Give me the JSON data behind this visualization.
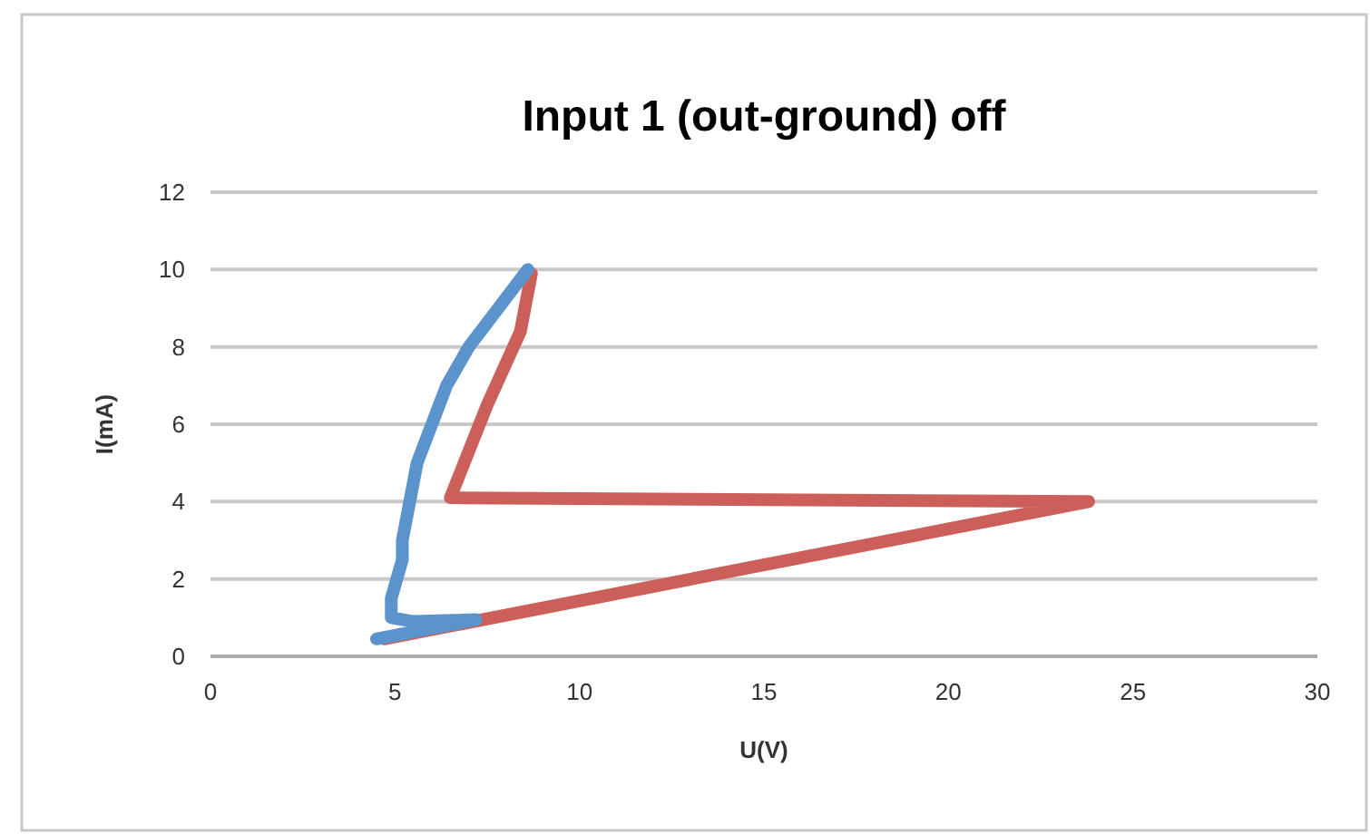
{
  "chart_data": {
    "type": "line",
    "title": "Input 1 (out-ground) off",
    "xlabel": "U(V)",
    "ylabel": "I(mA)",
    "xlim": [
      0,
      30
    ],
    "xticks": [
      0,
      5,
      10,
      15,
      20,
      25,
      30
    ],
    "ylim": [
      0,
      12
    ],
    "yticks": [
      0,
      2,
      4,
      6,
      8,
      10,
      12
    ],
    "grid": "y",
    "marker": "none",
    "line_style": "solid",
    "series": [
      {
        "color": "#cc5f5a",
        "x": [
          4.7,
          23.8,
          6.5,
          7.5,
          8.4,
          8.7
        ],
        "values": [
          0.45,
          4.0,
          4.1,
          6.5,
          8.4,
          9.9
        ]
      },
      {
        "color": "#5b93cd",
        "x": [
          8.6,
          7.8,
          7.0,
          6.4,
          6.0,
          5.6,
          5.4,
          5.2,
          5.2,
          4.9,
          4.9,
          5.5,
          7.2,
          4.5
        ],
        "values": [
          10,
          9,
          8,
          7,
          6,
          5,
          4,
          3,
          2.5,
          1.5,
          1.0,
          0.9,
          0.95,
          0.45
        ]
      }
    ]
  }
}
